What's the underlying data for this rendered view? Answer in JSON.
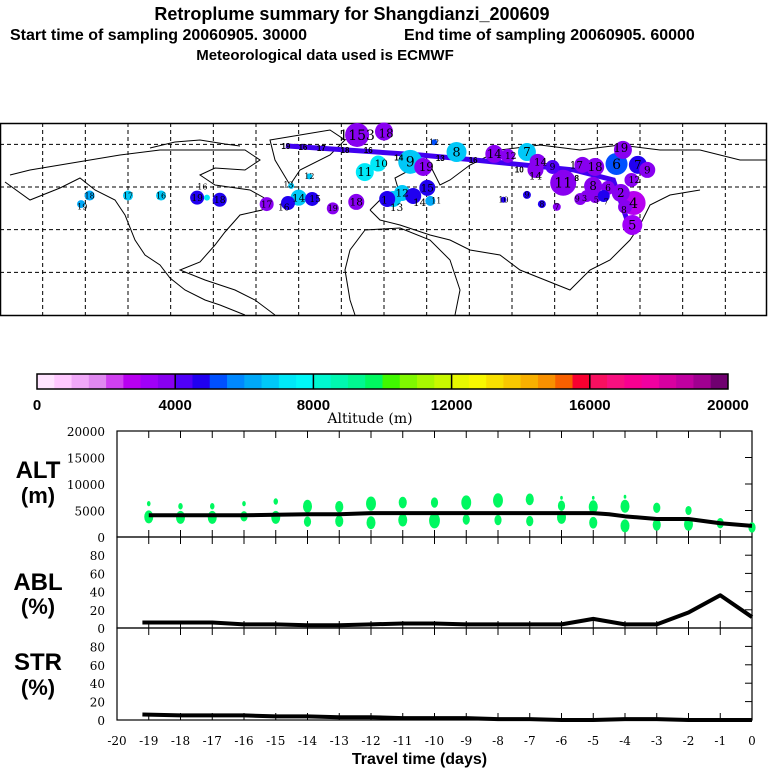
{
  "title": {
    "line1": "Retroplume summary for Shangdianzi_200609",
    "start": "Start time of sampling 20060905. 30000",
    "end": "End time of sampling 20060905. 60000",
    "line3": "Meteorological data used is ECMWF"
  },
  "colorbar": {
    "label": "Altitude (m)",
    "ticks": [
      "0",
      "4000",
      "8000",
      "12000",
      "16000",
      "20000"
    ],
    "range": [
      0,
      20000
    ],
    "step": 500,
    "colors": [
      "#ffe4ff",
      "#ffc8ff",
      "#f0a8f8",
      "#e088f0",
      "#d040f0",
      "#b800f0",
      "#a000f8",
      "#8800f0",
      "#5000f8",
      "#2000f0",
      "#0050ff",
      "#0088ff",
      "#00a8f8",
      "#00c8f8",
      "#00e8f8",
      "#00f8f8",
      "#00f8d0",
      "#00f8b0",
      "#00f890",
      "#00f860",
      "#40f800",
      "#80f800",
      "#a8f800",
      "#c8f800",
      "#e8f800",
      "#f8f800",
      "#f8e000",
      "#f8c800",
      "#f8b000",
      "#f89000",
      "#f86000",
      "#f80030",
      "#f81060",
      "#f81080",
      "#f80090",
      "#f000a0",
      "#d800a0",
      "#c000a0",
      "#a00090",
      "#700070"
    ]
  },
  "map": {
    "lon_range": [
      -180,
      180
    ],
    "lat_range": [
      0,
      90
    ],
    "grid_step_deg": 20,
    "trajectory_color": "#4000f0",
    "trajectory": [
      [
        -46,
        79.3
      ],
      [
        17,
        75
      ],
      [
        39,
        73
      ],
      [
        89,
        68
      ],
      [
        107.5,
        63.3
      ],
      [
        115.5,
        40
      ]
    ],
    "trajectory_labels": [
      {
        "label": "19",
        "lon": -46,
        "lat": 79.3
      },
      {
        "label": "16",
        "lon": -38,
        "lat": 78.8
      },
      {
        "label": "17",
        "lon": -29.4,
        "lat": 78.3
      },
      {
        "label": "18",
        "lon": -19.6,
        "lat": 77.9
      },
      {
        "label": "16",
        "lon": -7.4,
        "lat": 77.4
      },
      {
        "label": "14",
        "lon": 9.5,
        "lat": 75
      },
      {
        "label": "13",
        "lon": 26.4,
        "lat": 73.6
      },
      {
        "label": "16",
        "lon": 41.8,
        "lat": 72.7
      },
      {
        "label": "10",
        "lon": 68.6,
        "lat": 70.4
      },
      {
        "label": "8",
        "lon": 88.7,
        "lat": 68
      }
    ],
    "plumes": [
      {
        "label": "19",
        "lon": -142,
        "lat": 52,
        "alt": 6200,
        "weight": 4
      },
      {
        "label": "18",
        "lon": -138,
        "lat": 56,
        "alt": 6200,
        "weight": 5
      },
      {
        "label": "17",
        "lon": -120,
        "lat": 56,
        "alt": 6700,
        "weight": 5
      },
      {
        "label": "16",
        "lon": -104.5,
        "lat": 56,
        "alt": 6700,
        "weight": 5
      },
      {
        "label": "19",
        "lon": -87.6,
        "lat": 55,
        "alt": 4700,
        "weight": 7
      },
      {
        "label": "16",
        "lon": -83,
        "lat": 55,
        "alt": 7200,
        "weight": 3
      },
      {
        "label": "18",
        "lon": -77,
        "lat": 54,
        "alt": 4700,
        "weight": 7
      },
      {
        "label": "17",
        "lon": -55,
        "lat": 52,
        "alt": 3800,
        "weight": 7
      },
      {
        "label": "16",
        "lon": -45,
        "lat": 52.5,
        "alt": 4700,
        "weight": 7
      },
      {
        "label": "14",
        "lon": -40,
        "lat": 55,
        "alt": 6700,
        "weight": 8
      },
      {
        "label": "15",
        "lon": -33.7,
        "lat": 54.4,
        "alt": 4700,
        "weight": 7
      },
      {
        "label": "19",
        "lon": -24,
        "lat": 50,
        "alt": 3800,
        "weight": 6
      },
      {
        "label": "18",
        "lon": -13,
        "lat": 53,
        "alt": 3800,
        "weight": 8
      },
      {
        "label": "13",
        "lon": -43.5,
        "lat": 60.5,
        "alt": 6700,
        "weight": 3
      },
      {
        "label": "12",
        "lon": -35,
        "lat": 65,
        "alt": 6700,
        "weight": 3
      },
      {
        "label": "11",
        "lon": -9,
        "lat": 67,
        "alt": 7200,
        "weight": 9
      },
      {
        "label": "10",
        "lon": -2.7,
        "lat": 71,
        "alt": 7200,
        "weight": 8
      },
      {
        "label": "1153",
        "lon": -12.6,
        "lat": 84.4,
        "alt": 3800,
        "weight": 12
      },
      {
        "label": "18",
        "lon": 0,
        "lat": 86,
        "alt": 3800,
        "weight": 9
      },
      {
        "label": "12",
        "lon": 23.5,
        "lat": 81,
        "alt": 5200,
        "weight": 3
      },
      {
        "label": "8",
        "lon": 34,
        "lat": 76.4,
        "alt": 6700,
        "weight": 10
      },
      {
        "label": "9",
        "lon": 12.3,
        "lat": 71.8,
        "alt": 6700,
        "weight": 12
      },
      {
        "label": "19",
        "lon": 18.4,
        "lat": 69.4,
        "alt": 3800,
        "weight": 9
      },
      {
        "label": "14",
        "lon": 51.7,
        "lat": 75.5,
        "alt": 3700,
        "weight": 9
      },
      {
        "label": "12",
        "lon": 58,
        "lat": 74.6,
        "alt": 3700,
        "weight": 7
      },
      {
        "label": "7",
        "lon": 67,
        "lat": 76.4,
        "alt": 6700,
        "weight": 9
      },
      {
        "label": "14",
        "lon": 72,
        "lat": 71.8,
        "alt": 3700,
        "weight": 8
      },
      {
        "label": "14",
        "lon": 71,
        "lat": 68,
        "alt": 3700,
        "weight": 8
      },
      {
        "label": "9",
        "lon": 79,
        "lat": 69.4,
        "alt": 4200,
        "weight": 7
      },
      {
        "label": "11",
        "lon": 84,
        "lat": 62,
        "alt": 3700,
        "weight": 13
      },
      {
        "label": "17",
        "lon": 93,
        "lat": 70.4,
        "alt": 3700,
        "weight": 8
      },
      {
        "label": "18",
        "lon": 99,
        "lat": 69.4,
        "alt": 3700,
        "weight": 9
      },
      {
        "label": "6",
        "lon": 109,
        "lat": 70.8,
        "alt": 5200,
        "weight": 11
      },
      {
        "label": "19",
        "lon": 112,
        "lat": 77.4,
        "alt": 3700,
        "weight": 9
      },
      {
        "label": "7",
        "lon": 119,
        "lat": 70.4,
        "alt": 4700,
        "weight": 9
      },
      {
        "label": "9",
        "lon": 123.4,
        "lat": 68,
        "alt": 3700,
        "weight": 8
      },
      {
        "label": "12",
        "lon": 116,
        "lat": 63.3,
        "alt": 3700,
        "weight": 7
      },
      {
        "label": "8",
        "lon": 98,
        "lat": 60.5,
        "alt": 3700,
        "weight": 9
      },
      {
        "label": "6",
        "lon": 105,
        "lat": 59.6,
        "alt": 3700,
        "weight": 7
      },
      {
        "label": "3",
        "lon": 95,
        "lat": 55.8,
        "alt": 3700,
        "weight": 6
      },
      {
        "label": "5",
        "lon": 99,
        "lat": 55.3,
        "alt": 3700,
        "weight": 6
      },
      {
        "label": "7",
        "lon": 103,
        "lat": 55.8,
        "alt": 4700,
        "weight": 6
      },
      {
        "label": "9",
        "lon": 92,
        "lat": 54.4,
        "alt": 3700,
        "weight": 6
      },
      {
        "label": "2",
        "lon": 111,
        "lat": 57.2,
        "alt": 3700,
        "weight": 9
      },
      {
        "label": "4",
        "lon": 117,
        "lat": 52.5,
        "alt": 2700,
        "weight": 12
      },
      {
        "label": "5",
        "lon": 116.4,
        "lat": 42.2,
        "alt": 3200,
        "weight": 10
      },
      {
        "label": "8",
        "lon": 113,
        "lat": 50.7,
        "alt": 3700,
        "weight": 7
      },
      {
        "label": "15",
        "lon": 20.3,
        "lat": 59.6,
        "alt": 4700,
        "weight": 8
      },
      {
        "label": "12",
        "lon": 8.5,
        "lat": 57.2,
        "alt": 6700,
        "weight": 8
      },
      {
        "label": "14",
        "lon": 13.7,
        "lat": 55.8,
        "alt": 4700,
        "weight": 8
      },
      {
        "label": "13",
        "lon": 4.3,
        "lat": 54.4,
        "alt": 6700,
        "weight": 8
      },
      {
        "label": "1",
        "lon": 1.5,
        "lat": 54.4,
        "alt": 4700,
        "weight": 8
      },
      {
        "label": "11",
        "lon": 21.7,
        "lat": 53.5,
        "alt": 6200,
        "weight": 5
      },
      {
        "label": "10",
        "lon": 56,
        "lat": 54,
        "alt": 4700,
        "weight": 3
      },
      {
        "label": "9",
        "lon": 67,
        "lat": 56.3,
        "alt": 4700,
        "weight": 4
      },
      {
        "label": "8",
        "lon": 74,
        "lat": 52,
        "alt": 4700,
        "weight": 4
      },
      {
        "label": "7",
        "lon": 81,
        "lat": 50.7,
        "alt": 3700,
        "weight": 4
      }
    ]
  },
  "chart_data": [
    {
      "type": "line",
      "name": "ALT",
      "ylabel": "ALT",
      "yunit": "(m)",
      "ylim": [
        0,
        20000
      ],
      "yticks": [
        "0",
        "5000",
        "10000",
        "15000",
        "20000"
      ],
      "x": [
        -19,
        -18,
        -17,
        -16,
        -15,
        -14,
        -13,
        -12,
        -11,
        -10,
        -9,
        -8,
        -7,
        -6,
        -5,
        -4.5,
        -4,
        -3,
        -2,
        -1,
        0
      ],
      "values": [
        4100,
        4100,
        4100,
        4100,
        4200,
        4300,
        4300,
        4500,
        4500,
        4500,
        4500,
        4500,
        4500,
        4500,
        4500,
        4300,
        3900,
        3400,
        3400,
        2600,
        2100
      ],
      "scatter_color": "#00f860",
      "scatter": [
        [
          -19,
          3800,
          5
        ],
        [
          -19,
          6300,
          2
        ],
        [
          -18,
          3700,
          5
        ],
        [
          -18,
          5800,
          2.5
        ],
        [
          -17,
          3700,
          5
        ],
        [
          -17,
          5800,
          2.5
        ],
        [
          -16,
          3900,
          4
        ],
        [
          -16,
          6300,
          2
        ],
        [
          -15,
          3700,
          5
        ],
        [
          -15,
          6700,
          2.5
        ],
        [
          -14,
          2900,
          4
        ],
        [
          -14,
          5800,
          5
        ],
        [
          -13,
          3000,
          4.5
        ],
        [
          -13,
          5700,
          4.5
        ],
        [
          -12,
          2700,
          5
        ],
        [
          -12,
          6300,
          5.5
        ],
        [
          -11,
          3200,
          5
        ],
        [
          -11,
          6500,
          4.5
        ],
        [
          -10,
          3100,
          6
        ],
        [
          -10,
          6500,
          4
        ],
        [
          -9,
          3300,
          4
        ],
        [
          -9,
          6500,
          5.5
        ],
        [
          -8,
          3200,
          4
        ],
        [
          -8,
          6900,
          5.5
        ],
        [
          -7,
          3000,
          4
        ],
        [
          -7,
          7100,
          4.5
        ],
        [
          -6,
          3700,
          5
        ],
        [
          -6,
          5900,
          4
        ],
        [
          -6,
          7400,
          1.5
        ],
        [
          -5,
          2700,
          4.5
        ],
        [
          -5,
          5700,
          5
        ],
        [
          -5,
          7400,
          1.5
        ],
        [
          -4,
          2100,
          5
        ],
        [
          -4,
          5800,
          5
        ],
        [
          -4,
          7600,
          1.5
        ],
        [
          -3,
          2300,
          4.5
        ],
        [
          -3,
          5500,
          4
        ],
        [
          -2,
          2400,
          5
        ],
        [
          -2,
          5000,
          3.5
        ],
        [
          -1,
          2600,
          4
        ],
        [
          0,
          1800,
          4
        ]
      ]
    },
    {
      "type": "line",
      "name": "ABL",
      "ylabel": "ABL",
      "yunit": "(%)",
      "ylim": [
        0,
        100
      ],
      "yticks": [
        "0",
        "20",
        "40",
        "60",
        "80"
      ],
      "x": [
        -19.2,
        -18,
        -17,
        -16,
        -15,
        -14,
        -13,
        -12,
        -11,
        -10,
        -9,
        -8,
        -7,
        -6,
        -5,
        -4,
        -3,
        -2,
        -1,
        0
      ],
      "values": [
        6,
        6,
        6,
        4,
        4,
        3,
        3,
        4,
        5,
        5,
        4,
        4,
        4,
        4,
        10,
        4,
        4,
        17,
        36,
        12
      ]
    },
    {
      "type": "line",
      "name": "STR",
      "ylabel": "STR",
      "yunit": "(%)",
      "ylim": [
        0,
        100
      ],
      "yticks": [
        "0",
        "20",
        "40",
        "60",
        "80"
      ],
      "x": [
        -19.2,
        -18,
        -17,
        -16,
        -15,
        -14,
        -13,
        -12,
        -11,
        -10,
        -9,
        -8,
        -7,
        -6,
        -5,
        -4,
        -3,
        -2,
        -1,
        0
      ],
      "values": [
        6,
        5,
        5,
        5,
        4,
        4,
        3,
        3,
        2,
        2,
        2,
        1,
        1,
        0,
        0,
        1,
        1,
        0,
        0,
        0
      ],
      "xlabel": "Travel time (days)",
      "xlim": [
        -20,
        0
      ],
      "xticks": [
        "-20",
        "-19",
        "-18",
        "-17",
        "-16",
        "-15",
        "-14",
        "-13",
        "-12",
        "-11",
        "-10",
        "-9",
        "-8",
        "-7",
        "-6",
        "-5",
        "-4",
        "-3",
        "-2",
        "-1",
        "0"
      ]
    }
  ]
}
